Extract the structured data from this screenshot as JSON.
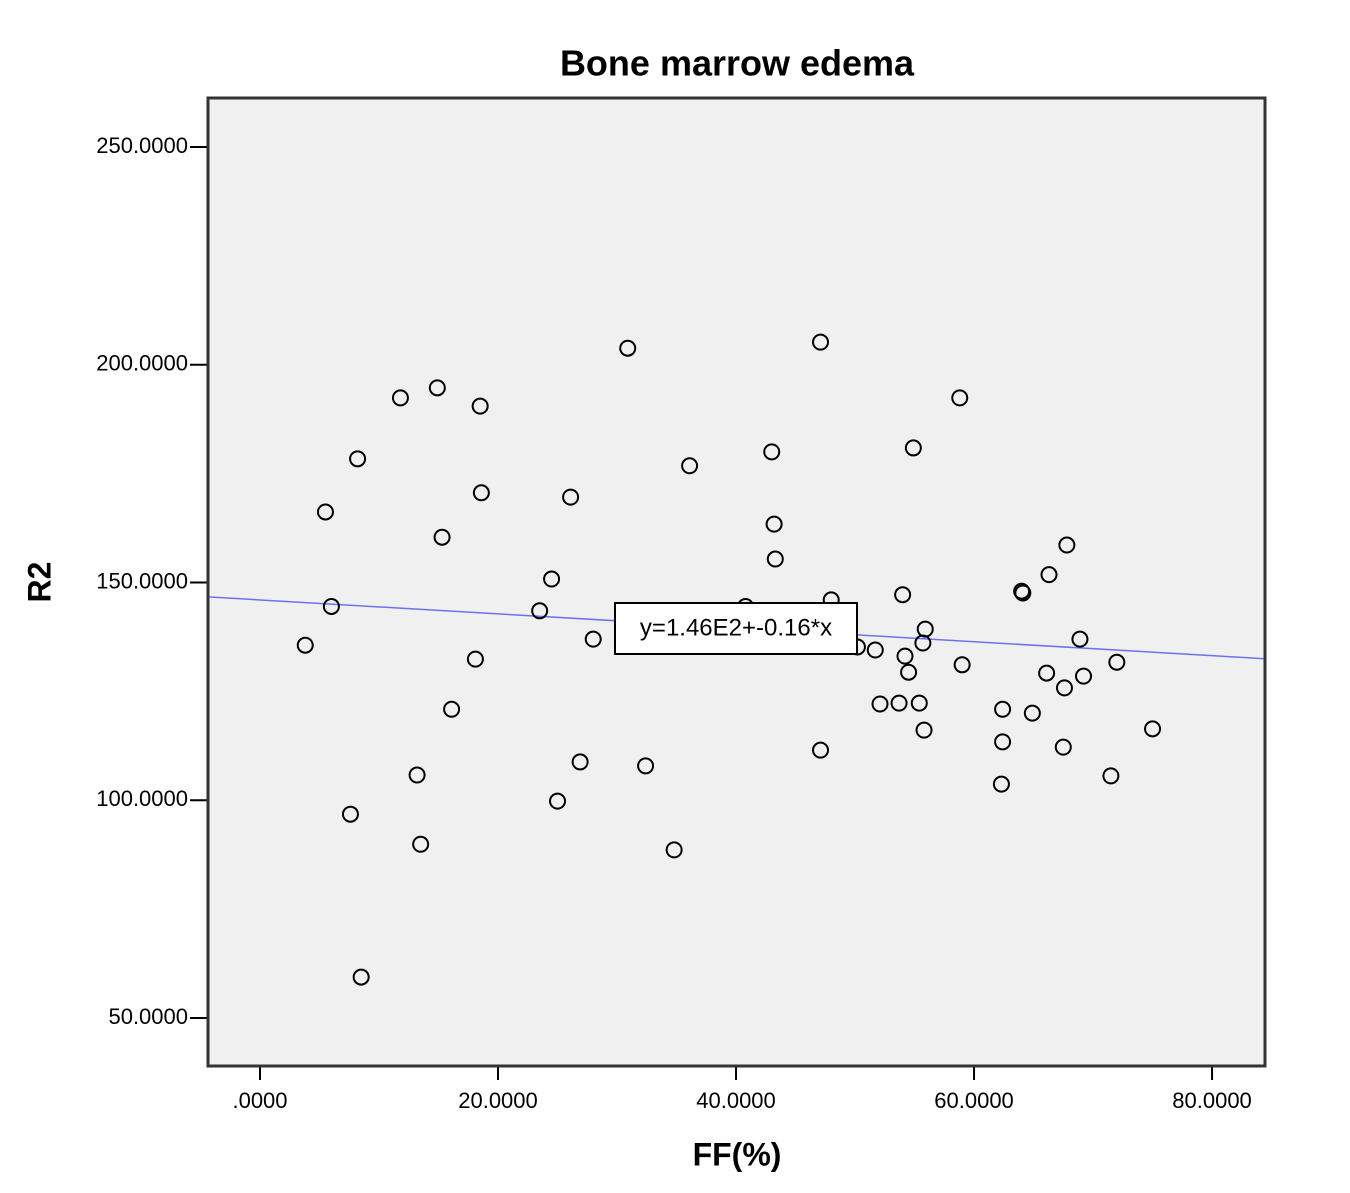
{
  "chart_data": {
    "type": "scatter",
    "title": "Bone marrow edema",
    "xlabel": "FF(%)",
    "ylabel": "R2",
    "xlim": [
      -4.37,
      84.45
    ],
    "ylim": [
      38.98,
      261.25
    ],
    "xticks": [
      {
        "value": 0,
        "label": ".0000"
      },
      {
        "value": 20,
        "label": "20.0000"
      },
      {
        "value": 40,
        "label": "40.0000"
      },
      {
        "value": 60,
        "label": "60.0000"
      },
      {
        "value": 80,
        "label": "80.0000"
      }
    ],
    "yticks": [
      {
        "value": 50,
        "label": "50.0000"
      },
      {
        "value": 100,
        "label": "100.0000"
      },
      {
        "value": 150,
        "label": "150.0000"
      },
      {
        "value": 200,
        "label": "200.0000"
      },
      {
        "value": 250,
        "label": "250.0000"
      }
    ],
    "grid": false,
    "background": "#f0f0f0",
    "marker_color": "#000000",
    "x": [
      3.8,
      5.5,
      6.0,
      8.2,
      7.6,
      8.5,
      11.8,
      13.2,
      13.5,
      14.9,
      15.3,
      16.1,
      18.1,
      18.5,
      18.6,
      23.5,
      24.5,
      25.0,
      26.1,
      26.9,
      28.0,
      30.9,
      32.4,
      34.8,
      36.1,
      40.8,
      43.0,
      43.2,
      43.3,
      47.1,
      47.1,
      48.0,
      50.2,
      51.7,
      52.1,
      53.7,
      54.0,
      54.2,
      54.5,
      54.9,
      55.4,
      55.7,
      55.9,
      55.8,
      58.8,
      59.0,
      62.3,
      62.4,
      62.4,
      64.0,
      64.1,
      64.9,
      66.1,
      66.3,
      67.5,
      67.6,
      67.8,
      68.9,
      69.2,
      71.5,
      72.0,
      75.0
    ],
    "values": [
      135.6,
      166.2,
      144.5,
      178.4,
      96.8,
      59.4,
      192.4,
      105.8,
      89.9,
      194.7,
      160.4,
      120.9,
      132.4,
      190.5,
      170.6,
      143.5,
      150.8,
      99.8,
      169.6,
      108.8,
      137.0,
      203.8,
      107.9,
      88.6,
      176.8,
      144.5,
      180.0,
      163.4,
      155.4,
      205.2,
      111.5,
      146.0,
      135.2,
      134.5,
      122.1,
      122.3,
      147.2,
      133.1,
      129.4,
      180.9,
      122.3,
      136.1,
      139.3,
      116.1,
      192.4,
      131.1,
      103.7,
      120.9,
      113.4,
      148.0,
      147.6,
      120.0,
      129.2,
      151.8,
      112.2,
      125.8,
      158.6,
      137.0,
      128.5,
      105.6,
      131.7,
      116.4
    ],
    "fit_line": {
      "intercept": 146,
      "slope": -0.16,
      "label": "y=1.46E2+-0.16*x",
      "color": "#6f6ff5"
    }
  }
}
